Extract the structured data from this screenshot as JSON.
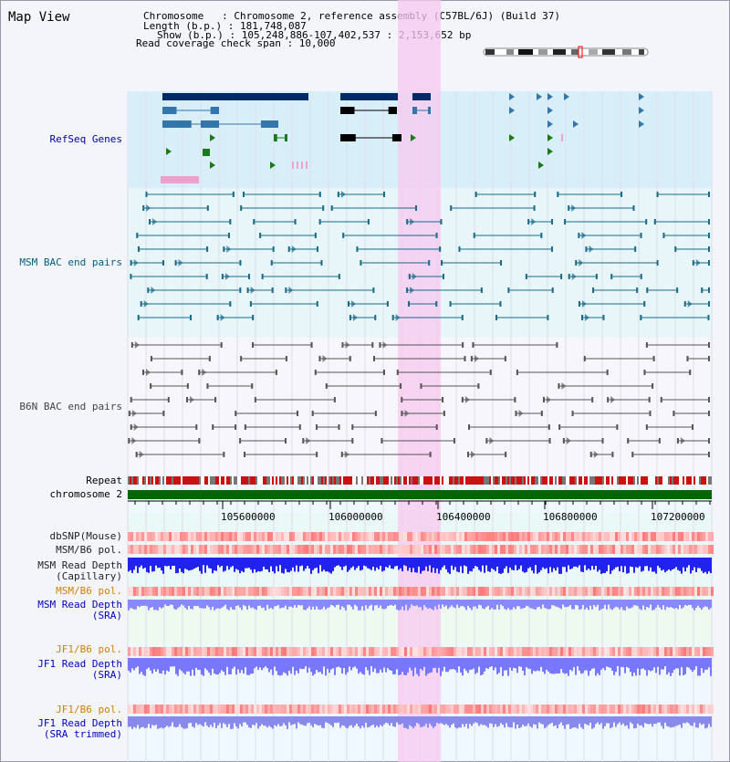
{
  "title": "Map View",
  "info": {
    "chromosome": "Chromosome   : Chromosome 2, reference assembly (C57BL/6J) (Build 37)",
    "length": "Length (b.p.) : 181,748,087",
    "show": "Show (b.p.) : 105,248,886-107,402,537 : 2,153,652 bp",
    "coverage": "Read coverage check span : 10,000"
  },
  "tracks": {
    "refseq": "RefSeq Genes",
    "msm_bac": "MSM BAC end pairs",
    "b6n_bac": "B6N BAC end pairs",
    "repeat": "Repeat",
    "chromosome": "chromosome 2",
    "dbsnp": "dbSNP(Mouse)",
    "msm_b6_pol_1": "MSM/B6 pol.",
    "msm_depth_cap_1": "MSM Read Depth",
    "msm_depth_cap_2": "(Capillary)",
    "msm_b6_pol_2": "MSM/B6 pol.",
    "msm_depth_sra_1": "MSM Read Depth",
    "msm_depth_sra_2": "(SRA)",
    "jf1_b6_pol_1": "JF1/B6 pol.",
    "jf1_depth_sra_1": "JF1 Read Depth",
    "jf1_depth_sra_2": "(SRA)",
    "jf1_b6_pol_2": "JF1/B6 pol.",
    "jf1_depth_trim_1": "JF1 Read Depth",
    "jf1_depth_trim_2": "(SRA trimmed)"
  },
  "axis": {
    "ticks": [
      "105600000",
      "106000000",
      "106400000",
      "106800000",
      "107200000"
    ]
  },
  "colors": {
    "refseq_label": "#0000aa",
    "msm_label": "#006080",
    "b6n_label": "#444444",
    "orange_label": "#d08000",
    "blue_label": "#0000c0",
    "highlight": "#f8c8f0"
  }
}
